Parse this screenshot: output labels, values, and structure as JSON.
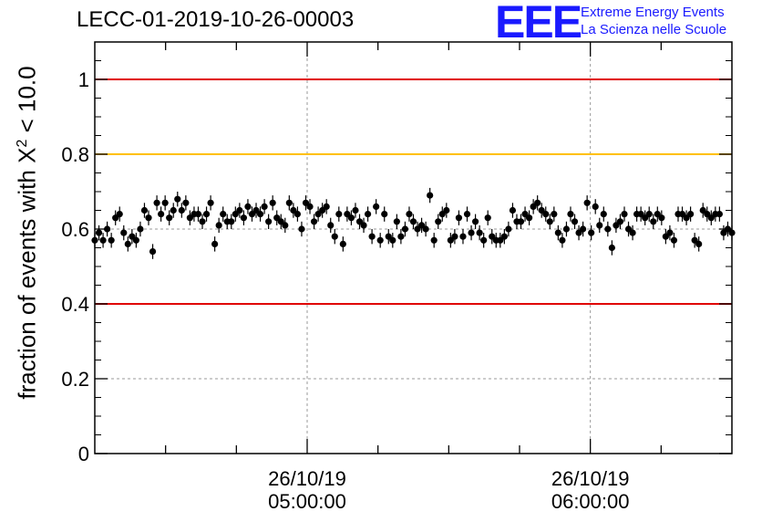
{
  "title": "LECC-01-2019-10-26-00003",
  "logo": {
    "mark": "EEE",
    "line1": "Extreme Energy Events",
    "line2": "La Scienza nelle Scuole",
    "color": "#1a1aff"
  },
  "chart_data": {
    "type": "scatter",
    "title": "LECC-01-2019-10-26-00003",
    "ylabel_prefix": "fraction of events with ",
    "ylabel_symbol": "X",
    "ylabel_sup": "2",
    "ylabel_suffix": " < 10.0",
    "xlabel": "",
    "ylim": [
      0,
      1.1
    ],
    "yticks": [
      0,
      0.2,
      0.4,
      0.6,
      0.8,
      1
    ],
    "ytick_labels": [
      "0",
      "0.2",
      "0.4",
      "0.6",
      "0.8",
      "1"
    ],
    "x_axis": "time",
    "xlim": [
      "2019-10-26 04:15:00",
      "2019-10-26 06:30:00"
    ],
    "xticks": [
      {
        "time": "2019-10-26 05:00:00",
        "date_label": "26/10/19",
        "time_label": "05:00:00"
      },
      {
        "time": "2019-10-26 06:00:00",
        "date_label": "26/10/19",
        "time_label": "06:00:00"
      }
    ],
    "grid_y": [
      0.2,
      0.6
    ],
    "reference_lines": [
      {
        "y": 1.0,
        "color": "#e00000"
      },
      {
        "y": 0.8,
        "color": "#ffc000"
      },
      {
        "y": 0.4,
        "color": "#e00000"
      }
    ],
    "error_bar": 0.02,
    "series": [
      {
        "start": "2019-10-26 04:15:00",
        "end": "2019-10-26 06:30:00",
        "y": [
          0.57,
          0.59,
          0.57,
          0.6,
          0.57,
          0.63,
          0.64,
          0.59,
          0.56,
          0.58,
          0.57,
          0.6,
          0.65,
          0.63,
          0.54,
          0.67,
          0.64,
          0.67,
          0.63,
          0.65,
          0.68,
          0.65,
          0.67,
          0.63,
          0.64,
          0.64,
          0.62,
          0.64,
          0.67,
          0.56,
          0.61,
          0.64,
          0.62,
          0.62,
          0.64,
          0.65,
          0.63,
          0.66,
          0.64,
          0.65,
          0.64,
          0.66,
          0.62,
          0.67,
          0.63,
          0.62,
          0.61,
          0.67,
          0.65,
          0.64,
          0.6,
          0.67,
          0.66,
          0.62,
          0.64,
          0.65,
          0.66,
          0.61,
          0.58,
          0.64,
          0.56,
          0.64,
          0.63,
          0.65,
          0.62,
          0.61,
          0.64,
          0.58,
          0.66,
          0.57,
          0.64,
          0.58,
          0.57,
          0.62,
          0.58,
          0.6,
          0.64,
          0.62,
          0.6,
          0.61,
          0.6,
          0.69,
          0.57,
          0.62,
          0.64,
          0.65,
          0.57,
          0.58,
          0.63,
          0.58,
          0.64,
          0.59,
          0.62,
          0.59,
          0.57,
          0.63,
          0.58,
          0.57,
          0.57,
          0.58,
          0.6,
          0.65,
          0.62,
          0.62,
          0.64,
          0.63,
          0.66,
          0.67,
          0.65,
          0.64,
          0.62,
          0.64,
          0.59,
          0.57,
          0.6,
          0.64,
          0.62,
          0.59,
          0.6,
          0.67,
          0.59,
          0.66,
          0.61,
          0.64,
          0.6,
          0.55,
          0.61,
          0.62,
          0.64,
          0.6,
          0.59,
          0.64,
          0.64,
          0.63,
          0.64,
          0.62,
          0.64,
          0.63,
          0.58,
          0.59,
          0.57,
          0.64,
          0.64,
          0.63,
          0.64,
          0.57,
          0.56,
          0.65,
          0.64,
          0.63,
          0.64,
          0.64,
          0.59,
          0.6,
          0.59
        ]
      }
    ]
  }
}
